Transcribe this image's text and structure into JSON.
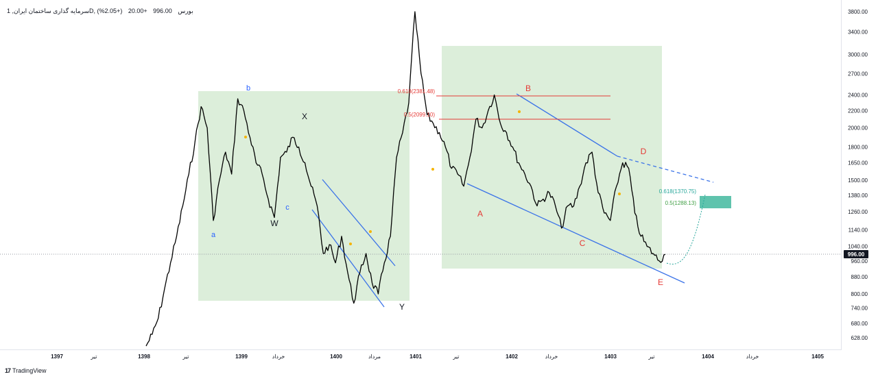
{
  "header": {
    "title": "سرمایه گذاری ساختمان ایران, 1D, بورس",
    "price": "996.00",
    "change": "+20.00",
    "change_pct": "(+2.05%)"
  },
  "footer": {
    "brand": "TradingView"
  },
  "colors": {
    "price_line": "#000000",
    "box_fill": "#d6ebd3",
    "channel_blue": "#3b73e8",
    "fib_red": "#e53935",
    "label_red": "#e53935",
    "label_blue": "#2962ff",
    "label_teal": "#26a69a",
    "target_box": "#5fc3ad",
    "last_price_badge": "#131722"
  },
  "chart_data": {
    "type": "line",
    "y_scale": "log",
    "ylim": [
      590,
      4100
    ],
    "y_ticks": [
      "3800.00",
      "3400.00",
      "3000.00",
      "2700.00",
      "2400.00",
      "2200.00",
      "2000.00",
      "1800.00",
      "1650.00",
      "1500.00",
      "1380.00",
      "1260.00",
      "1140.00",
      "1040.00",
      "960.00",
      "880.00",
      "800.00",
      "740.00",
      "680.00",
      "628.00"
    ],
    "x_ticks": [
      "1397",
      "تیر",
      "1398",
      "تیر",
      "1399",
      "خرداد",
      "1400",
      "مرداد",
      "1401",
      "تیر",
      "1402",
      "خرداد",
      "1403",
      "تیر",
      "1404",
      "خرداد",
      "1405"
    ],
    "last_price": "996.00",
    "series": [
      {
        "x_axis": "time (bar index, left to right)",
        "values": [
          600,
          640,
          700,
          820,
          950,
          1100,
          1300,
          1550,
          1850,
          2250,
          2000,
          1200,
          1500,
          1750,
          1550,
          2350,
          2200,
          1900,
          1650,
          1550,
          1350,
          1220,
          1700,
          1750,
          1900,
          1800,
          1650,
          1450,
          1300,
          1000,
          1050,
          950,
          1100,
          900,
          760,
          900,
          1000,
          850,
          800,
          950,
          1100,
          1700,
          1950,
          2300,
          3800,
          2700,
          2150,
          2050,
          1950,
          1800,
          1600,
          1550,
          1450,
          1700,
          2100,
          2000,
          2200,
          2400,
          2050,
          1950,
          1800,
          1650,
          1550,
          1450,
          1300,
          1350,
          1400,
          1300,
          1150,
          1300,
          1300,
          1450,
          1650,
          1750,
          1400,
          1250,
          1200,
          1450,
          1650,
          1600,
          1250,
          1100,
          1040,
          1000,
          960,
          996
        ]
      }
    ],
    "wave_labels_a": [
      "a",
      "b",
      "c"
    ],
    "wave_labels_b": [
      "W",
      "X",
      "Y"
    ],
    "wave_labels_c": [
      "A",
      "B",
      "C",
      "D",
      "E"
    ],
    "fib_levels_upper": [
      "0.618(2381.48)",
      "0.5(2099.10)"
    ],
    "fib_levels_target": [
      "0.618(1370.75)",
      "0.5(1288.13)"
    ]
  }
}
